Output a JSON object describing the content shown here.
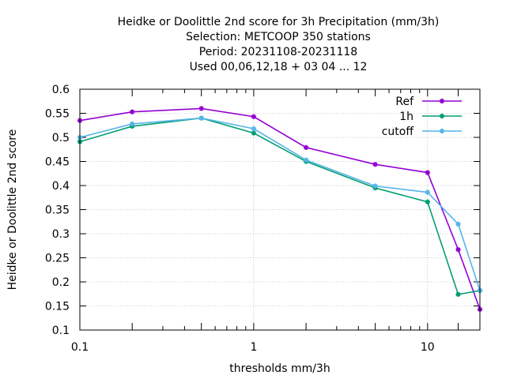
{
  "chart_data": {
    "type": "line",
    "title_lines": [
      "Heidke or Doolittle 2nd score  for 3h Precipitation (mm/3h)",
      "Selection: METCOOP    350 stations",
      "Period: 20231108-20231118",
      "Used  00,06,12,18 + 03 04 ... 12"
    ],
    "xlabel": "thresholds mm/3h",
    "ylabel": "Heidke or Doolittle 2nd score",
    "x_scale": "log",
    "xlim": [
      0.1,
      20
    ],
    "ylim": [
      0.1,
      0.6
    ],
    "x_tick_labels": [
      {
        "value": 0.1,
        "label": "0.1"
      },
      {
        "value": 1,
        "label": "1"
      },
      {
        "value": 10,
        "label": "10"
      }
    ],
    "x_major_ticks": [
      0.1,
      0.2,
      0.5,
      1,
      2,
      5,
      10,
      15,
      20
    ],
    "x_minor_ticks": [
      0.3,
      0.4,
      0.6,
      0.7,
      0.8,
      0.9,
      3,
      4,
      6,
      7,
      8,
      9
    ],
    "y_ticks": [
      0.1,
      0.15,
      0.2,
      0.25,
      0.3,
      0.35,
      0.4,
      0.45,
      0.5,
      0.55,
      0.6
    ],
    "y_tick_labels": [
      "0.1",
      "0.15",
      "0.2",
      "0.25",
      "0.3",
      "0.35",
      "0.4",
      "0.45",
      "0.5",
      "0.55",
      "0.6"
    ],
    "grid": true,
    "legend_position": "top-right",
    "x": [
      0.1,
      0.2,
      0.5,
      1,
      2,
      5,
      10,
      15,
      20
    ],
    "series": [
      {
        "name": "Ref",
        "color": "#9400d3",
        "values": [
          0.535,
          0.553,
          0.56,
          0.543,
          0.479,
          0.444,
          0.427,
          0.267,
          0.143
        ]
      },
      {
        "name": "1h",
        "color": "#009e73",
        "values": [
          0.491,
          0.523,
          0.54,
          0.509,
          0.45,
          0.395,
          0.366,
          0.174,
          0.182
        ]
      },
      {
        "name": "cutoff",
        "color": "#56b4e9",
        "values": [
          0.5,
          0.528,
          0.54,
          0.518,
          0.453,
          0.399,
          0.386,
          0.32,
          0.182
        ]
      }
    ]
  }
}
